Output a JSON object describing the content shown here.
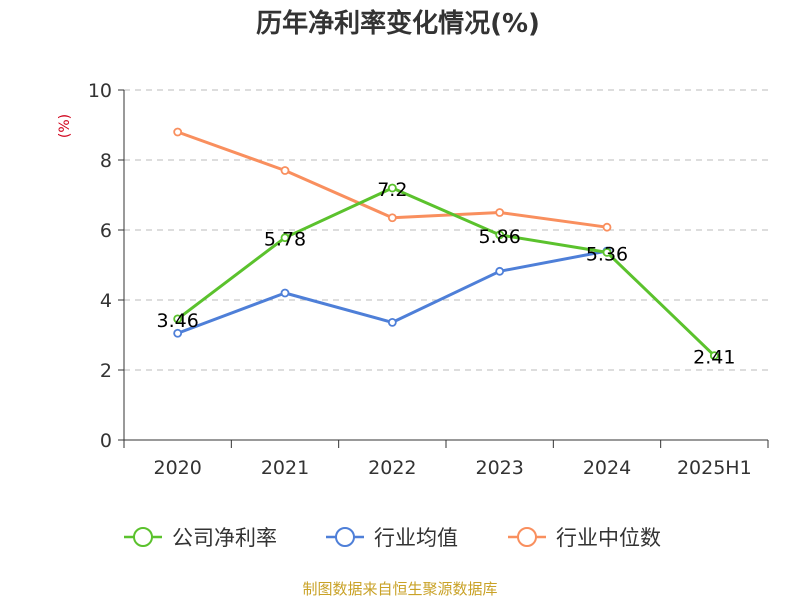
{
  "chart_data": {
    "type": "line",
    "title": "历年净利率变化情况(%)",
    "unit_label": "(%)",
    "categories": [
      "2020",
      "2021",
      "2022",
      "2023",
      "2024",
      "2025H1"
    ],
    "ylim": [
      0,
      10
    ],
    "yticks": [
      0,
      2,
      4,
      6,
      8,
      10
    ],
    "grid": true,
    "legend_position": "bottom",
    "series": [
      {
        "name": "公司净利率",
        "color": "#5bc22d",
        "values": [
          3.46,
          5.78,
          7.2,
          5.86,
          5.36,
          2.41
        ],
        "labels": [
          "3.46",
          "5.78",
          "7.2",
          "5.86",
          "5.36",
          "2.41"
        ]
      },
      {
        "name": "行业均值",
        "color": "#4e7fd8",
        "values": [
          3.05,
          4.2,
          3.36,
          4.82,
          5.4,
          null
        ]
      },
      {
        "name": "行业中位数",
        "color": "#f98f5e",
        "values": [
          8.8,
          7.7,
          6.35,
          6.5,
          6.08,
          null
        ]
      }
    ],
    "source": "制图数据来自恒生聚源数据库"
  }
}
